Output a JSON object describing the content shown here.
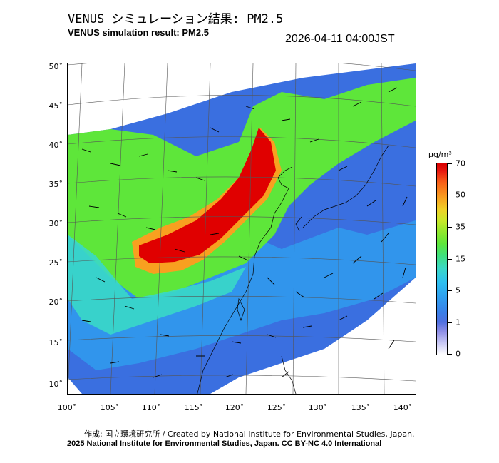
{
  "title_jp": "VENUS シミュレーション結果: PM2.5",
  "title_en": "VENUS simulation result: PM2.5",
  "datetime": "2026-04-11 04:00JST",
  "map": {
    "lat_ticks": [
      "50˚",
      "45˚",
      "40˚",
      "35˚",
      "30˚",
      "25˚",
      "20˚",
      "15˚",
      "10˚"
    ],
    "lon_ticks": [
      "100˚",
      "105˚",
      "110˚",
      "115˚",
      "120˚",
      "125˚",
      "130˚",
      "135˚",
      "140˚"
    ],
    "colors": {
      "very_high": "#e00000",
      "high": "#f8a020",
      "mid": "#5ee63a",
      "low": "#2ec0f0",
      "very_low": "#3a6fe0",
      "minimal": "#c9c9f5"
    }
  },
  "colorbar": {
    "unit": "μg/m³",
    "labels": [
      "70",
      "50",
      "35",
      "15",
      "5",
      "1",
      "0"
    ]
  },
  "credit_jp": "作成: 国立環境研究所 / Created by National Institute for Environmental Studies, Japan.",
  "credit_en": "2025 National Institute for Environmental Studies, Japan. CC BY-NC 4.0 International"
}
